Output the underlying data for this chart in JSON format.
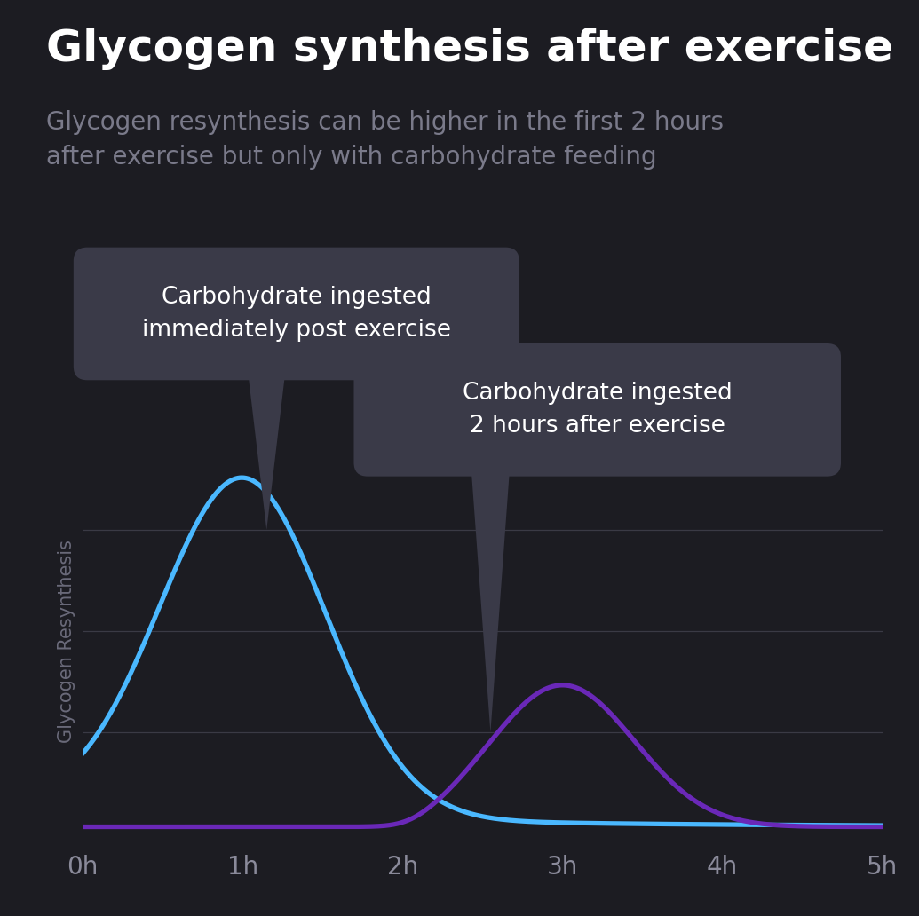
{
  "title": "Glycogen synthesis after exercise",
  "subtitle": "Glycogen resynthesis can be higher in the first 2 hours\nafter exercise but only with carbohydrate feeding",
  "xlabel_ticks": [
    "0h",
    "1h",
    "2h",
    "3h",
    "4h",
    "5h"
  ],
  "ylabel": "Glycogen Resynthesis",
  "background_color": "#1c1c22",
  "plot_bg_color": "#1c1c22",
  "grid_color": "#3a3a45",
  "title_color": "#ffffff",
  "subtitle_color": "#7a7a8a",
  "ylabel_color": "#6a6a7a",
  "xlabel_color": "#8a8a9a",
  "curve1_color": "#4ab8ff",
  "curve2_color": "#6a28b8",
  "annotation1_text": "Carbohydrate ingested\nimmediately post exercise",
  "annotation2_text": "Carbohydrate ingested\n2 hours after exercise",
  "annotation_bg": "#3a3a48",
  "annotation_text_color": "#ffffff",
  "title_fontsize": 36,
  "subtitle_fontsize": 20,
  "annotation_fontsize": 19,
  "ylabel_fontsize": 15,
  "xlabel_fontsize": 20
}
